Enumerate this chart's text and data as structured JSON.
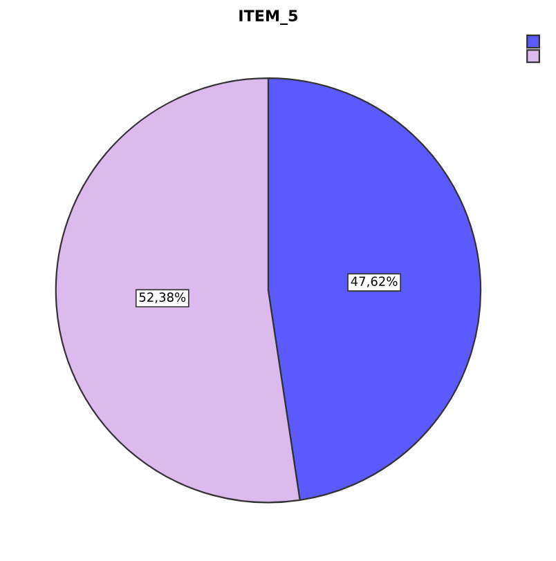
{
  "chart_data": {
    "type": "pie",
    "title": "ITEM_5",
    "categories": [
      null,
      null
    ],
    "values": [
      47.62,
      52.38
    ],
    "colors": [
      "#5a5aff",
      "#dcbaee"
    ],
    "value_labels": [
      "47,62%",
      "52,38%"
    ]
  }
}
